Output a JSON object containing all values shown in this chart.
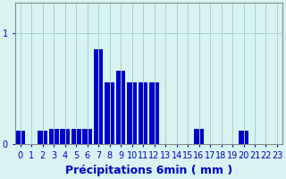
{
  "xlabel": "Précipitations 6min ( mm )",
  "bar_color": "#0000cc",
  "bg_color": "#d8f4f2",
  "grid_color": "#aacece",
  "axis_color": "#888888",
  "ylim_max": 1.28,
  "yticks": [
    0,
    1
  ],
  "hours": [
    0,
    1,
    2,
    3,
    4,
    5,
    6,
    7,
    8,
    9,
    10,
    11,
    12,
    13,
    14,
    15,
    16,
    17,
    18,
    19,
    20,
    21,
    22,
    23
  ],
  "values": [
    0.12,
    0.0,
    0.12,
    0.14,
    0.14,
    0.14,
    0.14,
    0.86,
    0.56,
    0.66,
    0.56,
    0.56,
    0.56,
    0.0,
    0.0,
    0.0,
    0.14,
    0.0,
    0.0,
    0.0,
    0.12,
    0.0,
    0.0,
    0.0
  ],
  "xlabel_fontsize": 9,
  "tick_fontsize": 7
}
